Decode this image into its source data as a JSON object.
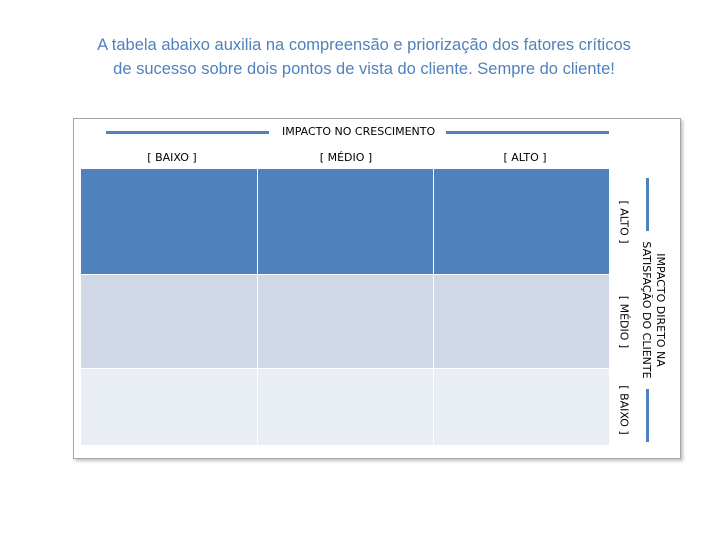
{
  "intro": {
    "line1": "A tabela abaixo auxilia na compreensão e priorização dos fatores críticos",
    "line2": "de sucesso sobre dois pontos de vista do cliente. Sempre do cliente!"
  },
  "matrix": {
    "x_axis_title": "IMPACTO NO CRESCIMENTO",
    "x_levels": [
      "[ BAIXO ]",
      "[ MÉDIO ]",
      "[ ALTO ]"
    ],
    "y_axis_title_line1": "IMPACTO DIRETO NA",
    "y_axis_title_line2": "SATISFAÇÃO DO CLIENTE",
    "y_levels": [
      "[ ALTO ]",
      "[ MÉDIO ]",
      "[ BAIXO ]"
    ],
    "row_colors": [
      "#4f81bd",
      "#d0d8e8",
      "#e9edf4"
    ],
    "axis_color": "#4f81bd",
    "text_color": "#4f81bd"
  }
}
